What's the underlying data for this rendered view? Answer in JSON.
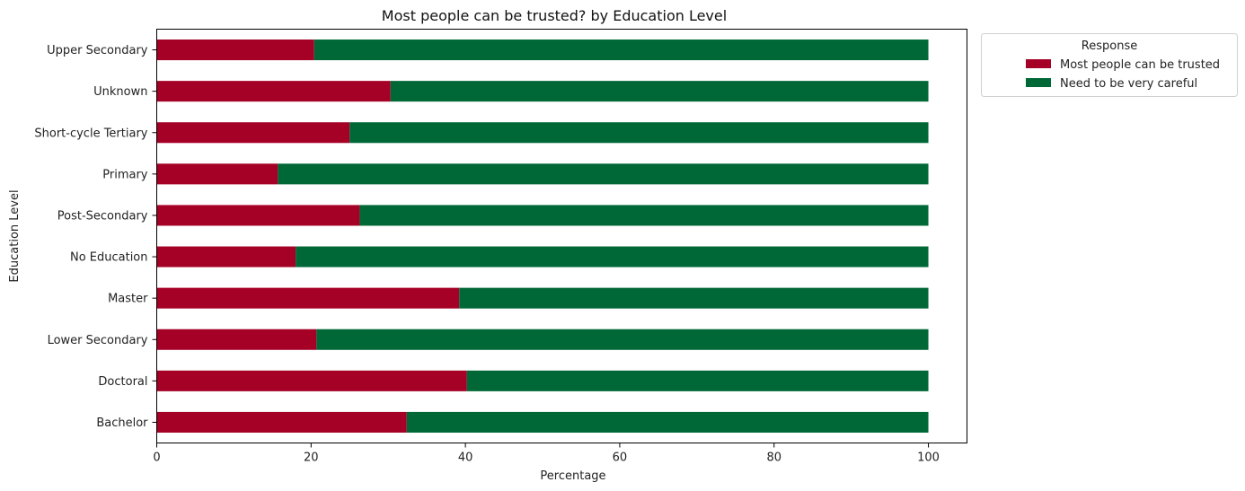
{
  "chart_data": {
    "type": "bar",
    "orientation": "horizontal",
    "stacked": true,
    "title": "Most people can be trusted? by Education Level",
    "xlabel": "Percentage",
    "ylabel": "Education Level",
    "xlim": [
      0,
      105
    ],
    "xticks": [
      0,
      20,
      40,
      60,
      80,
      100
    ],
    "grid": false,
    "categories": [
      "Bachelor",
      "Doctoral",
      "Lower Secondary",
      "Master",
      "No Education",
      "Post-Secondary",
      "Primary",
      "Short-cycle Tertiary",
      "Unknown",
      "Upper Secondary"
    ],
    "series": [
      {
        "name": "Most people can be trusted",
        "color": "#a50026",
        "values": [
          32.4,
          40.2,
          20.7,
          39.2,
          18.0,
          26.3,
          15.7,
          25.0,
          30.3,
          20.4
        ]
      },
      {
        "name": "Need to be very careful",
        "color": "#006837",
        "values": [
          67.6,
          59.8,
          79.3,
          60.8,
          82.0,
          73.7,
          84.3,
          75.0,
          69.7,
          79.6
        ]
      }
    ],
    "legend": {
      "title": "Response",
      "placement": "outside-top-right"
    }
  }
}
